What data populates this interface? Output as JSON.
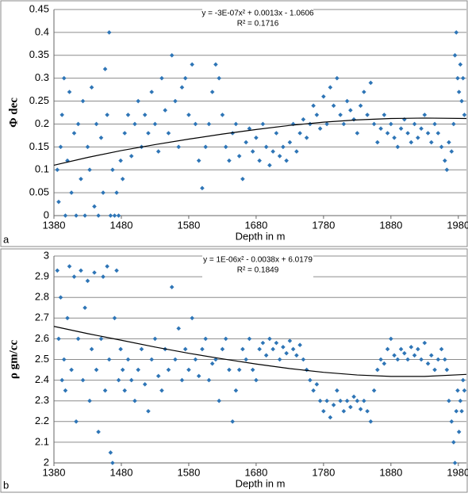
{
  "chart_data": [
    {
      "type": "scatter",
      "panel_label": "a",
      "x_label": "Depth in m",
      "y_label": "Φ dec",
      "equation": "y = -3E-07x² + 0.0013x - 1.0606",
      "r_squared": "R² = 0.1716",
      "color": "#2e75b6",
      "grid": true,
      "xlim": [
        1380,
        1992
      ],
      "ylim": [
        0,
        0.45
      ],
      "xticks": [
        1380,
        1480,
        1580,
        1680,
        1780,
        1880,
        1980
      ],
      "yticks": [
        0,
        0.05,
        0.1,
        0.15,
        0.2,
        0.25,
        0.3,
        0.35,
        0.4,
        0.45
      ],
      "x": [
        1385,
        1387,
        1390,
        1392,
        1395,
        1397,
        1400,
        1403,
        1406,
        1410,
        1413,
        1416,
        1420,
        1423,
        1426,
        1430,
        1433,
        1436,
        1440,
        1443,
        1446,
        1450,
        1453,
        1456,
        1459,
        1462,
        1464,
        1467,
        1470,
        1473,
        1476,
        1479,
        1482,
        1485,
        1490,
        1495,
        1500,
        1505,
        1510,
        1515,
        1520,
        1525,
        1530,
        1535,
        1540,
        1545,
        1550,
        1555,
        1560,
        1565,
        1570,
        1575,
        1580,
        1585,
        1590,
        1595,
        1600,
        1605,
        1610,
        1615,
        1620,
        1625,
        1630,
        1635,
        1640,
        1645,
        1650,
        1655,
        1660,
        1665,
        1670,
        1675,
        1680,
        1685,
        1690,
        1695,
        1700,
        1705,
        1710,
        1715,
        1720,
        1725,
        1730,
        1735,
        1740,
        1745,
        1750,
        1755,
        1760,
        1765,
        1770,
        1775,
        1780,
        1785,
        1790,
        1795,
        1800,
        1805,
        1810,
        1815,
        1820,
        1825,
        1830,
        1835,
        1840,
        1845,
        1850,
        1855,
        1860,
        1865,
        1870,
        1875,
        1880,
        1885,
        1890,
        1895,
        1900,
        1905,
        1910,
        1915,
        1920,
        1925,
        1930,
        1935,
        1940,
        1945,
        1950,
        1955,
        1960,
        1963,
        1966,
        1970,
        1973,
        1975,
        1977,
        1979,
        1981,
        1983,
        1985,
        1987,
        1989
      ],
      "values": [
        0.1,
        0.03,
        0.15,
        0.22,
        0.3,
        0,
        0.12,
        0.27,
        0.05,
        0.18,
        0,
        0.2,
        0.08,
        0.25,
        0,
        0.15,
        0.1,
        0.28,
        0.02,
        0.2,
        0,
        0.17,
        0.05,
        0.32,
        0.22,
        0.4,
        0,
        0.1,
        0,
        0.05,
        0,
        0.12,
        0.08,
        0.18,
        0.22,
        0.13,
        0.2,
        0.25,
        0.15,
        0.22,
        0.18,
        0.27,
        0.2,
        0.14,
        0.3,
        0.23,
        0.18,
        0.35,
        0.25,
        0.15,
        0.28,
        0.3,
        0.22,
        0.33,
        0.2,
        0.12,
        0.06,
        0.15,
        0.2,
        0.27,
        0.33,
        0.3,
        0.22,
        0.15,
        0.12,
        0.18,
        0.2,
        0.13,
        0.08,
        0.16,
        0.19,
        0.14,
        0.17,
        0.12,
        0.2,
        0.15,
        0.11,
        0.14,
        0.18,
        0.13,
        0.15,
        0.12,
        0.16,
        0.2,
        0.14,
        0.18,
        0.21,
        0.17,
        0.2,
        0.24,
        0.22,
        0.19,
        0.26,
        0.2,
        0.28,
        0.24,
        0.3,
        0.22,
        0.2,
        0.25,
        0.23,
        0.21,
        0.18,
        0.24,
        0.27,
        0.22,
        0.29,
        0.2,
        0.16,
        0.19,
        0.22,
        0.18,
        0.2,
        0.17,
        0.15,
        0.19,
        0.21,
        0.18,
        0.16,
        0.2,
        0.17,
        0.19,
        0.22,
        0.18,
        0.16,
        0.2,
        0.18,
        0.15,
        0.12,
        0.1,
        0.16,
        0.14,
        0.2,
        0.35,
        0.4,
        0.3,
        0.27,
        0.33,
        0.25,
        0.3,
        0.22
      ],
      "trendline": {
        "color": "#000000",
        "x": [
          1380,
          1430,
          1480,
          1530,
          1580,
          1630,
          1680,
          1730,
          1780,
          1830,
          1880,
          1930,
          1992
        ],
        "values": [
          0.11,
          0.127,
          0.142,
          0.155,
          0.167,
          0.178,
          0.188,
          0.197,
          0.204,
          0.209,
          0.212,
          0.213,
          0.212
        ]
      }
    },
    {
      "type": "scatter",
      "panel_label": "b",
      "x_label": "Depth in m",
      "y_label": "ρ gm/cc",
      "equation": "y = 1E-06x² - 0.0038x + 6.0179",
      "r_squared": "R² = 0.1849",
      "color": "#2e75b6",
      "grid": true,
      "xlim": [
        1380,
        1992
      ],
      "ylim": [
        2,
        3
      ],
      "xticks": [
        1380,
        1480,
        1580,
        1680,
        1780,
        1880,
        1980
      ],
      "yticks": [
        2,
        2.1,
        2.2,
        2.3,
        2.4,
        2.5,
        2.6,
        2.7,
        2.8,
        2.9,
        3
      ],
      "x": [
        1385,
        1387,
        1390,
        1392,
        1395,
        1397,
        1400,
        1403,
        1406,
        1410,
        1413,
        1416,
        1420,
        1423,
        1426,
        1430,
        1433,
        1436,
        1440,
        1443,
        1446,
        1450,
        1453,
        1456,
        1459,
        1462,
        1464,
        1467,
        1470,
        1473,
        1476,
        1479,
        1482,
        1485,
        1490,
        1495,
        1500,
        1505,
        1510,
        1515,
        1520,
        1525,
        1530,
        1535,
        1540,
        1545,
        1550,
        1555,
        1560,
        1565,
        1570,
        1575,
        1580,
        1585,
        1590,
        1595,
        1600,
        1605,
        1610,
        1615,
        1620,
        1625,
        1630,
        1635,
        1640,
        1645,
        1650,
        1655,
        1660,
        1665,
        1670,
        1675,
        1680,
        1685,
        1690,
        1695,
        1700,
        1705,
        1710,
        1715,
        1720,
        1725,
        1730,
        1735,
        1740,
        1745,
        1750,
        1755,
        1760,
        1765,
        1770,
        1775,
        1780,
        1785,
        1790,
        1795,
        1800,
        1805,
        1810,
        1815,
        1820,
        1825,
        1830,
        1835,
        1840,
        1845,
        1850,
        1855,
        1860,
        1865,
        1870,
        1875,
        1880,
        1885,
        1890,
        1895,
        1900,
        1905,
        1910,
        1915,
        1920,
        1925,
        1930,
        1935,
        1940,
        1945,
        1950,
        1955,
        1960,
        1963,
        1966,
        1970,
        1973,
        1975,
        1977,
        1979,
        1981,
        1983,
        1985,
        1987,
        1989
      ],
      "values": [
        2.93,
        2.6,
        2.8,
        2.4,
        2.5,
        2.35,
        2.7,
        2.95,
        2.45,
        2.9,
        2.2,
        2.6,
        2.93,
        2.4,
        2.75,
        2.88,
        2.3,
        2.55,
        2.92,
        2.45,
        2.15,
        2.6,
        2.9,
        2.35,
        2.95,
        2.5,
        2.05,
        2.0,
        2.7,
        2.93,
        2.4,
        2.55,
        2.45,
        2.35,
        2.5,
        2.4,
        2.3,
        2.45,
        2.55,
        2.38,
        2.25,
        2.5,
        2.6,
        2.42,
        2.35,
        2.55,
        2.45,
        2.85,
        2.5,
        2.65,
        2.4,
        2.55,
        2.45,
        2.7,
        2.5,
        2.42,
        2.55,
        2.6,
        2.4,
        2.48,
        2.5,
        2.3,
        2.55,
        2.6,
        2.45,
        2.2,
        2.35,
        2.45,
        2.55,
        2.5,
        2.6,
        2.45,
        2.4,
        2.55,
        2.58,
        2.52,
        2.6,
        2.55,
        2.58,
        2.5,
        2.56,
        2.53,
        2.59,
        2.55,
        2.52,
        2.57,
        2.5,
        2.45,
        2.4,
        2.35,
        2.38,
        2.3,
        2.25,
        2.3,
        2.22,
        2.28,
        2.35,
        2.3,
        2.25,
        2.3,
        2.27,
        2.32,
        2.3,
        2.26,
        2.3,
        2.25,
        2.2,
        2.35,
        2.45,
        2.5,
        2.48,
        2.55,
        2.6,
        2.52,
        2.5,
        2.55,
        2.53,
        2.5,
        2.56,
        2.52,
        2.55,
        2.5,
        2.58,
        2.48,
        2.52,
        2.45,
        2.5,
        2.55,
        2.5,
        2.45,
        2.3,
        2.2,
        2.1,
        2.0,
        2.25,
        2.35,
        2.15,
        2.3,
        2.25,
        2.4,
        2.35
      ],
      "trendline": {
        "color": "#000000",
        "x": [
          1380,
          1430,
          1480,
          1530,
          1580,
          1630,
          1680,
          1730,
          1780,
          1830,
          1880,
          1930,
          1992
        ],
        "values": [
          2.66,
          2.625,
          2.593,
          2.56,
          2.53,
          2.503,
          2.478,
          2.456,
          2.438,
          2.425,
          2.418,
          2.418,
          2.428
        ]
      }
    }
  ]
}
